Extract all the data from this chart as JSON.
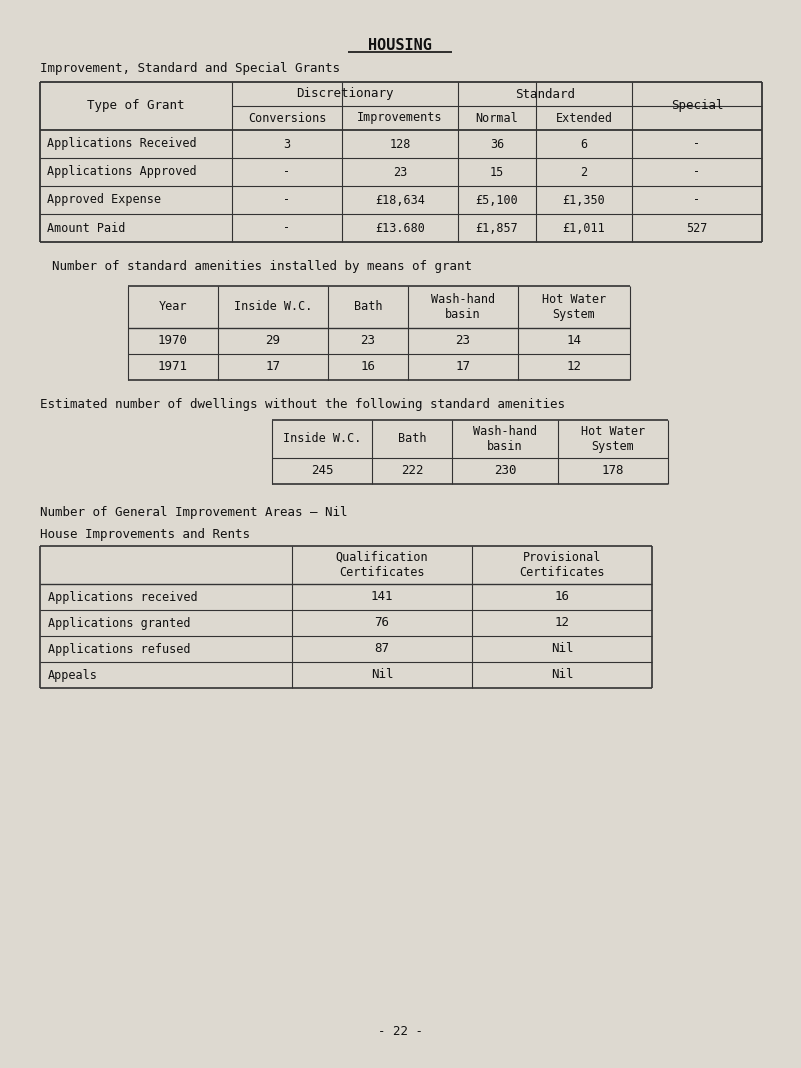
{
  "title": "HOUSING",
  "subtitle": "Improvement, Standard and Special Grants",
  "table1_rows": [
    [
      "Applications Received",
      "3",
      "128",
      "36",
      "6",
      "-"
    ],
    [
      "Applications Approved",
      "-",
      "23",
      "15",
      "2",
      "-"
    ],
    [
      "Approved Expense",
      "-",
      "£18,634",
      "£5,100",
      "£1,350",
      "-"
    ],
    [
      "Amount Paid",
      "-",
      "£13.680",
      "£1,857",
      "£1,011",
      "527"
    ]
  ],
  "table2_title": "Number of standard amenities installed by means of grant",
  "table2_header": [
    "Year",
    "Inside W.C.",
    "Bath",
    "Wash-hand\nbasin",
    "Hot Water\nSystem"
  ],
  "table2_rows": [
    [
      "1970",
      "29",
      "23",
      "23",
      "14"
    ],
    [
      "1971",
      "17",
      "16",
      "17",
      "12"
    ]
  ],
  "table3_title": "Estimated number of dwellings without the following standard amenities",
  "table3_header": [
    "Inside W.C.",
    "Bath",
    "Wash-hand\nbasin",
    "Hot Water\nSystem"
  ],
  "table3_row": [
    "245",
    "222",
    "230",
    "178"
  ],
  "general_improvement": "Number of General Improvement Areas – Nil",
  "house_improvements_title": "House Improvements and Rents",
  "table4_header": [
    "",
    "Qualification\nCertificates",
    "Provisional\nCertificates"
  ],
  "table4_rows": [
    [
      "Applications received",
      "141",
      "16"
    ],
    [
      "Applications granted",
      "76",
      "12"
    ],
    [
      "Applications refused",
      "87",
      "Nil"
    ],
    [
      "Appeals",
      "Nil",
      "Nil"
    ]
  ],
  "page_number": "- 22 -",
  "bg_color": "#ddd9d0",
  "line_color": "#333333",
  "text_color": "#111111"
}
